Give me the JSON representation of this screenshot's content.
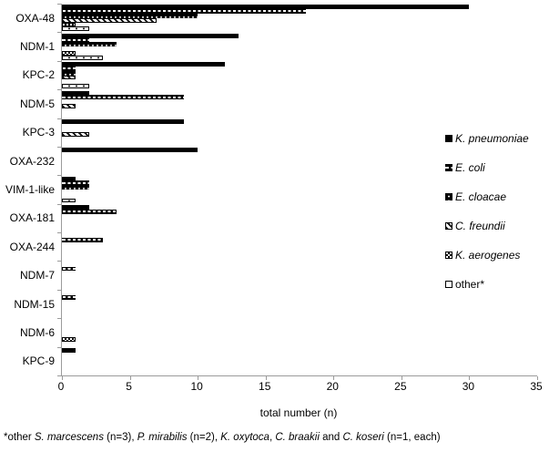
{
  "chart_data": {
    "type": "bar",
    "orientation": "horizontal",
    "title": "",
    "xlabel": "total number (n)",
    "ylabel": "",
    "xlim": [
      0,
      35
    ],
    "xticks": [
      0,
      5,
      10,
      15,
      20,
      25,
      30,
      35
    ],
    "grid": false,
    "legend_position": "right",
    "categories": [
      "OXA-48",
      "NDM-1",
      "KPC-2",
      "NDM-5",
      "KPC-3",
      "OXA-232",
      "VIM-1-like",
      "OXA-181",
      "OXA-244",
      "NDM-7",
      "NDM-15",
      "NDM-6",
      "KPC-9"
    ],
    "series": [
      {
        "name": "K. pneumoniae",
        "italic": true,
        "pattern": "solid",
        "values": [
          30,
          13,
          12,
          2,
          9,
          10,
          1,
          2,
          0,
          0,
          0,
          0,
          1
        ]
      },
      {
        "name": "E. coli",
        "italic": true,
        "pattern": "squares",
        "values": [
          18,
          2,
          1,
          9,
          0,
          0,
          2,
          4,
          3,
          1,
          1,
          0,
          0
        ]
      },
      {
        "name": "E. cloacae",
        "italic": true,
        "pattern": "dots",
        "values": [
          10,
          4,
          1,
          0,
          0,
          0,
          2,
          0,
          0,
          0,
          0,
          0,
          0
        ]
      },
      {
        "name": "C. freundii",
        "italic": true,
        "pattern": "stripes",
        "values": [
          7,
          0,
          1,
          1,
          2,
          0,
          0,
          0,
          0,
          0,
          0,
          0,
          0
        ]
      },
      {
        "name": "K. aerogenes",
        "italic": true,
        "pattern": "checker",
        "values": [
          1,
          1,
          0,
          0,
          0,
          0,
          0,
          0,
          0,
          0,
          0,
          1,
          0
        ]
      },
      {
        "name": "other*",
        "italic": false,
        "pattern": "outline",
        "values": [
          2,
          3,
          2,
          0,
          0,
          0,
          1,
          0,
          0,
          0,
          0,
          0,
          0
        ]
      }
    ]
  },
  "footnote_segments": [
    {
      "text": "*other ",
      "italic": false
    },
    {
      "text": "S. marcescens",
      "italic": true
    },
    {
      "text": " (n=3), ",
      "italic": false
    },
    {
      "text": "P. mirabilis",
      "italic": true
    },
    {
      "text": " (n=2), ",
      "italic": false
    },
    {
      "text": "K. oxytoca",
      "italic": true
    },
    {
      "text": ", ",
      "italic": false
    },
    {
      "text": "C. braakii",
      "italic": true
    },
    {
      "text": " and ",
      "italic": false
    },
    {
      "text": "C. koseri",
      "italic": true
    },
    {
      "text": " (n=1, each)",
      "italic": false
    }
  ],
  "colors": {
    "bar": "#000000",
    "axis": "#9b9b9b",
    "text": "#000000",
    "background": "#ffffff"
  }
}
